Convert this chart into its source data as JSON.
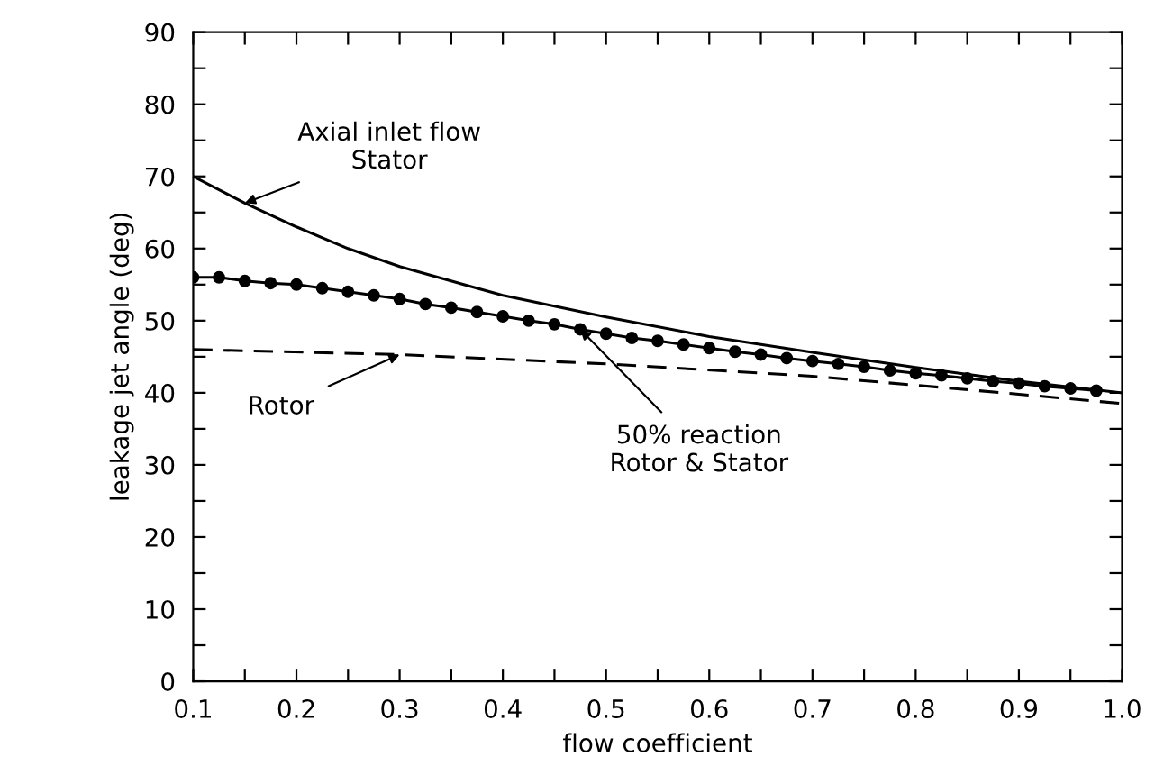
{
  "chart_data": {
    "type": "line",
    "xlabel": "flow coefficient",
    "ylabel": "leakage jet angle (deg)",
    "xlim": [
      0.1,
      1.0
    ],
    "ylim": [
      0,
      90
    ],
    "xticks": [
      0.1,
      {
        "value": 0.15,
        "label": null
      },
      0.2,
      {
        "value": 0.25,
        "label": null
      },
      0.3,
      {
        "value": 0.35,
        "label": null
      },
      0.4,
      {
        "value": 0.45,
        "label": null
      },
      0.5,
      {
        "value": 0.55,
        "label": null
      },
      0.6,
      {
        "value": 0.65,
        "label": null
      },
      0.7,
      {
        "value": 0.75,
        "label": null
      },
      0.8,
      {
        "value": 0.85,
        "label": null
      },
      0.9,
      {
        "value": 0.95,
        "label": null
      },
      {
        "value": 1.0,
        "label": "1.0"
      }
    ],
    "yticks": [
      0,
      {
        "value": 5,
        "label": null
      },
      10,
      {
        "value": 15,
        "label": null
      },
      20,
      {
        "value": 25,
        "label": null
      },
      30,
      {
        "value": 35,
        "label": null
      },
      40,
      {
        "value": 45,
        "label": null
      },
      50,
      {
        "value": 55,
        "label": null
      },
      60,
      {
        "value": 65,
        "label": null
      },
      70,
      {
        "value": 75,
        "label": null
      },
      80,
      {
        "value": 85,
        "label": null
      },
      90
    ],
    "grid": false,
    "series": [
      {
        "name": "Axial inlet flow\nStator",
        "color": "#000000",
        "line_style": "solid",
        "marker": "none",
        "x": [
          0.1,
          0.15,
          0.2,
          0.25,
          0.3,
          0.4,
          0.5,
          0.6,
          0.7,
          0.8,
          0.9,
          1.0
        ],
        "values": [
          70,
          66.3,
          63,
          60,
          57.5,
          53.5,
          50.5,
          47.8,
          45.6,
          43.5,
          41.6,
          40
        ]
      },
      {
        "name": "Rotor",
        "color": "#000000",
        "line_style": "dashed",
        "marker": "none",
        "x": [
          0.1,
          0.3,
          0.5,
          0.7,
          0.9,
          1.0
        ],
        "values": [
          46,
          45.3,
          44,
          42.3,
          39.8,
          38.5
        ]
      },
      {
        "name": "50% reaction\nRotor & Stator",
        "color": "#000000",
        "line_style": "solid",
        "marker": "circle",
        "x": [
          0.1,
          0.125,
          0.15,
          0.175,
          0.2,
          0.225,
          0.25,
          0.275,
          0.3,
          0.325,
          0.35,
          0.375,
          0.4,
          0.425,
          0.45,
          0.475,
          0.5,
          0.525,
          0.55,
          0.575,
          0.6,
          0.625,
          0.65,
          0.675,
          0.7,
          0.725,
          0.75,
          0.775,
          0.8,
          0.825,
          0.85,
          0.875,
          0.9,
          0.925,
          0.95,
          0.975
        ],
        "values": [
          56,
          56,
          55.5,
          55.2,
          55,
          54.5,
          54,
          53.5,
          53,
          52.3,
          51.8,
          51.2,
          50.6,
          50,
          49.5,
          48.8,
          48.2,
          47.6,
          47.2,
          46.7,
          46.2,
          45.7,
          45.3,
          44.8,
          44.4,
          44,
          43.6,
          43.1,
          42.7,
          42.4,
          42,
          41.6,
          41.3,
          40.9,
          40.6,
          40.3
        ]
      }
    ]
  }
}
